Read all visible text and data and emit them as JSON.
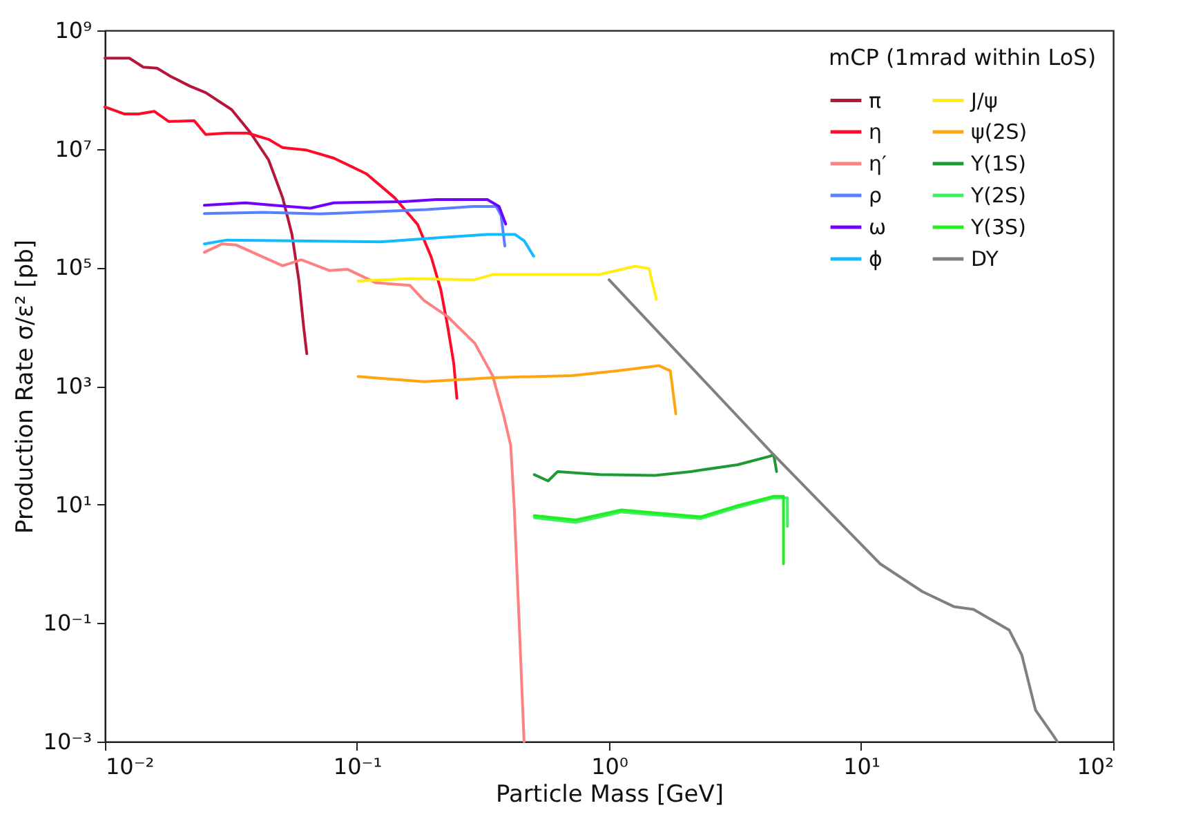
{
  "chart_data": {
    "type": "line",
    "xlabel": "Particle Mass [GeV]",
    "ylabel": "Production Rate σ/ε² [pb]",
    "legend_title": "mCP (1mrad within LoS)",
    "legend": "top right",
    "grid": false,
    "log": "xy",
    "xlim": [
      0.01,
      100
    ],
    "ylim": [
      0.001,
      1000000000
    ],
    "xticks": [
      {
        "value": 0.01,
        "label": "10⁻²"
      },
      {
        "value": 0.1,
        "label": "10⁻¹"
      },
      {
        "value": 1,
        "label": "10⁰"
      },
      {
        "value": 10,
        "label": "10¹"
      },
      {
        "value": 100,
        "label": "10²"
      }
    ],
    "yticks": [
      {
        "value": 0.001,
        "label": "10⁻³"
      },
      {
        "value": 0.1,
        "label": "10⁻¹"
      },
      {
        "value": 10,
        "label": "10¹"
      },
      {
        "value": 1000,
        "label": "10³"
      },
      {
        "value": 100000,
        "label": "10⁵"
      },
      {
        "value": 10000000,
        "label": "10⁷"
      },
      {
        "value": 1000000000,
        "label": "10⁹"
      }
    ],
    "series": [
      {
        "name": "π",
        "color": "#b5173a",
        "x": [
          0.01,
          0.0125,
          0.0142,
          0.0161,
          0.0183,
          0.0217,
          0.0251,
          0.0318,
          0.0377,
          0.0446,
          0.0507,
          0.0552,
          0.0588,
          0.0614,
          0.0632
        ],
        "values": [
          340000000,
          340000000,
          240000000,
          230000000,
          166000000,
          115000000,
          89000000,
          46000000,
          19000000,
          6500000,
          1500000,
          360000,
          60000,
          10000,
          3500
        ]
      },
      {
        "name": "η",
        "color": "#ff0a28",
        "x": [
          0.01,
          0.0119,
          0.0136,
          0.0157,
          0.0179,
          0.0226,
          0.0251,
          0.0304,
          0.0368,
          0.0446,
          0.0507,
          0.0627,
          0.0809,
          0.109,
          0.141,
          0.174,
          0.197,
          0.215,
          0.229,
          0.242,
          0.249
        ],
        "values": [
          51000000,
          39000000,
          39000000,
          43000000,
          29000000,
          30000000,
          17500000,
          18500000,
          18500000,
          14500000,
          10500000,
          9600000,
          7000000,
          3800000,
          1500000,
          530000,
          150000,
          42000,
          10000,
          2400,
          620
        ]
      },
      {
        "name": "η′",
        "color": "#ff8080",
        "x": [
          0.0248,
          0.0292,
          0.0331,
          0.041,
          0.0507,
          0.0601,
          0.0775,
          0.0918,
          0.119,
          0.162,
          0.184,
          0.228,
          0.293,
          0.345,
          0.381,
          0.407,
          0.42,
          0.44,
          0.46
        ],
        "values": [
          180000,
          250000,
          240000,
          160000,
          107000,
          135000,
          89000,
          93000,
          55000,
          50000,
          28000,
          15000,
          5300,
          1500,
          330,
          100,
          10,
          0.1,
          0.001
        ]
      },
      {
        "name": "ρ",
        "color": "#5a80ff",
        "x": [
          0.0248,
          0.0428,
          0.0711,
          0.124,
          0.189,
          0.289,
          0.357,
          0.373,
          0.386
        ],
        "values": [
          810000,
          850000,
          800000,
          880000,
          950000,
          1070000,
          1070000,
          750000,
          230000
        ]
      },
      {
        "name": "ω",
        "color": "#7000ff",
        "x": [
          0.0248,
          0.0361,
          0.0466,
          0.0653,
          0.0809,
          0.153,
          0.206,
          0.329,
          0.366,
          0.389
        ],
        "values": [
          1120000,
          1230000,
          1120000,
          1000000,
          1230000,
          1290000,
          1400000,
          1400000,
          1070000,
          540000
        ]
      },
      {
        "name": "ϕ",
        "color": "#10bbff",
        "x": [
          0.0248,
          0.0304,
          0.0653,
          0.124,
          0.215,
          0.329,
          0.424,
          0.461,
          0.502
        ],
        "values": [
          250000,
          290000,
          280000,
          270000,
          320000,
          360000,
          360000,
          280000,
          155000
        ]
      },
      {
        "name": "J/ψ",
        "color": "#ffee10",
        "x": [
          0.101,
          0.162,
          0.293,
          0.345,
          0.917,
          1.27,
          1.44,
          1.54
        ],
        "values": [
          59000,
          65000,
          62000,
          76000,
          76000,
          105000,
          96000,
          29000
        ]
      },
      {
        "name": "ψ(2S)",
        "color": "#ffa510",
        "x": [
          0.101,
          0.184,
          0.345,
          0.711,
          1.08,
          1.58,
          1.75,
          1.84
        ],
        "values": [
          1450,
          1180,
          1380,
          1500,
          1800,
          2200,
          1800,
          340
        ]
      },
      {
        "name": "Υ(1S)",
        "color": "#1e9a34",
        "x": [
          0.505,
          0.573,
          0.625,
          0.92,
          1.52,
          2.11,
          3.24,
          4.33,
          4.5,
          4.62
        ],
        "values": [
          32,
          25,
          36,
          32,
          31,
          36,
          47,
          65,
          69,
          36
        ]
      },
      {
        "name": "Υ(2S)",
        "color": "#40f060",
        "x": [
          0.505,
          0.738,
          1.12,
          2.31,
          3.24,
          4.51,
          5.1,
          5.1
        ],
        "values": [
          6,
          5,
          7.5,
          5.8,
          9,
          13,
          13,
          4.3
        ]
      },
      {
        "name": "Υ(3S)",
        "color": "#22ee22",
        "x": [
          0.505,
          0.738,
          1.12,
          2.31,
          3.24,
          4.51,
          4.92,
          4.92
        ],
        "values": [
          6.5,
          5.5,
          8.1,
          6.2,
          9.6,
          13.8,
          13.8,
          1
        ]
      },
      {
        "name": "DY",
        "color": "#808080",
        "x": [
          1,
          4.5,
          11.9,
          17.5,
          23.3,
          27.9,
          38.7,
          43.4,
          49.2,
          58,
          60
        ],
        "values": [
          62000,
          69,
          1,
          0.34,
          0.19,
          0.17,
          0.076,
          0.029,
          0.0034,
          0.00125,
          0.001
        ]
      }
    ]
  }
}
